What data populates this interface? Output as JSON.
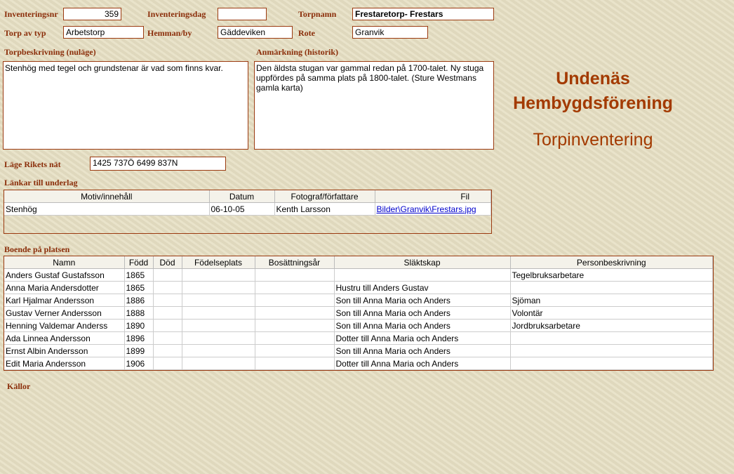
{
  "form": {
    "inventeringsnr_label": "Inventeringsnr",
    "inventeringsnr": "359",
    "inventeringsdag_label": "Inventeringsdag",
    "inventeringsdag": "",
    "torpnamn_label": "Torpnamn",
    "torpnamn": "Frestaretorp- Frestars",
    "torp_av_typ_label": "Torp av typ",
    "torp_av_typ": "Arbetstorp",
    "hemman_label": "Hemman/by",
    "hemman": "Gäddeviken",
    "rote_label": "Rote",
    "rote": "Granvik",
    "beskrivning_label": "Torpbeskrivning (nuläge)",
    "beskrivning": "Stenhög med tegel och grundstenar är vad som finns kvar.",
    "anmarkning_label": "Anmärkning (historik)",
    "anmarkning": "Den äldsta stugan var gammal redan på 1700-talet. Ny stuga uppfördes på samma plats på 1800-talet. (Sture Westmans gamla karta)",
    "lage_label": "Läge Rikets nät",
    "lage": "1425 737Ö  6499 837N"
  },
  "header": {
    "org_line1": "Undenäs",
    "org_line2": "Hembygdsförening",
    "subtitle": "Torpinventering"
  },
  "links": {
    "label": "Länkar till underlag",
    "columns": [
      "Motiv/innehåll",
      "Datum",
      "Fotograf/författare",
      "Fil"
    ],
    "rows": [
      [
        "Stenhög",
        "06-10-05",
        "Kenth Larsson",
        "Bilder\\Granvik\\Frestars.jpg"
      ]
    ]
  },
  "residents": {
    "label": "Boende på platsen",
    "columns": [
      "Namn",
      "Född",
      "Död",
      "Födelseplats",
      "Bosättningsår",
      "Släktskap",
      "Personbeskrivning"
    ],
    "rows": [
      [
        "Anders Gustaf Gustafsson",
        "1865",
        "",
        "",
        "",
        "",
        "Tegelbruksarbetare"
      ],
      [
        "Anna Maria Andersdotter",
        "1865",
        "",
        "",
        "",
        "Hustru till Anders Gustav",
        ""
      ],
      [
        "Karl Hjalmar Andersson",
        "1886",
        "",
        "",
        "",
        "Son till Anna Maria och Anders",
        "Sjöman"
      ],
      [
        "Gustav Verner Andersson",
        "1888",
        "",
        "",
        "",
        "Son till Anna Maria och Anders",
        "Volontär"
      ],
      [
        "Henning Valdemar Anderss",
        "1890",
        "",
        "",
        "",
        "Son till Anna Maria och Anders",
        "Jordbruksarbetare"
      ],
      [
        "Ada Linnea Andersson",
        "1896",
        "",
        "",
        "",
        "Dotter till Anna Maria och Anders",
        ""
      ],
      [
        "Ernst Albin Andersson",
        "1899",
        "",
        "",
        "",
        "Son till Anna Maria och Anders",
        ""
      ],
      [
        "Edit Maria Andersson",
        "1906",
        "",
        "",
        "",
        "Dotter till Anna Maria och Anders",
        ""
      ]
    ]
  },
  "sources": {
    "label": "Källor"
  },
  "colors": {
    "label": "#8b2e0a",
    "border": "#9b3a10",
    "title": "#a33a00",
    "link": "#0000cc"
  }
}
